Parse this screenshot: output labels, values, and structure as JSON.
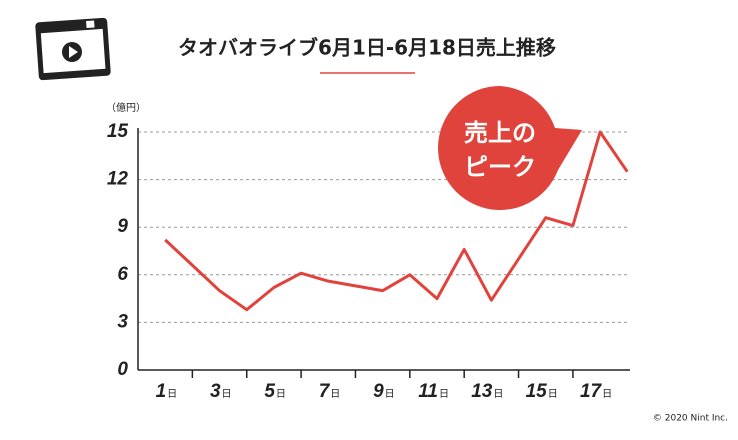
{
  "chart_data": {
    "type": "line",
    "title": "タオバオライブ6月1日-6月18日売上推移",
    "y_label": "（億円）",
    "x_unit": "日",
    "x": [
      1,
      2,
      3,
      4,
      5,
      6,
      7,
      8,
      9,
      10,
      11,
      12,
      13,
      14,
      15,
      16,
      17,
      18
    ],
    "series": [
      {
        "name": "売上",
        "color": "#e0433c",
        "values": [
          8.2,
          6.6,
          5.0,
          3.8,
          5.2,
          6.1,
          5.6,
          5.3,
          5.0,
          6.0,
          4.5,
          7.6,
          4.4,
          7.0,
          9.6,
          9.1,
          15.0,
          12.5
        ]
      }
    ],
    "xlim": [
      0,
      18.1
    ],
    "xticks": [
      1,
      3,
      5,
      7,
      9,
      11,
      13,
      15,
      17
    ],
    "minor_xticks": [
      2,
      4,
      6,
      8,
      10,
      12,
      14,
      16
    ],
    "ylim": [
      0,
      15
    ],
    "yticks": [
      0,
      3,
      6,
      9,
      12,
      15
    ],
    "grid": true,
    "annotation": [
      "売上の",
      "ピーク"
    ],
    "copyright": "© 2020 Nint Inc."
  }
}
